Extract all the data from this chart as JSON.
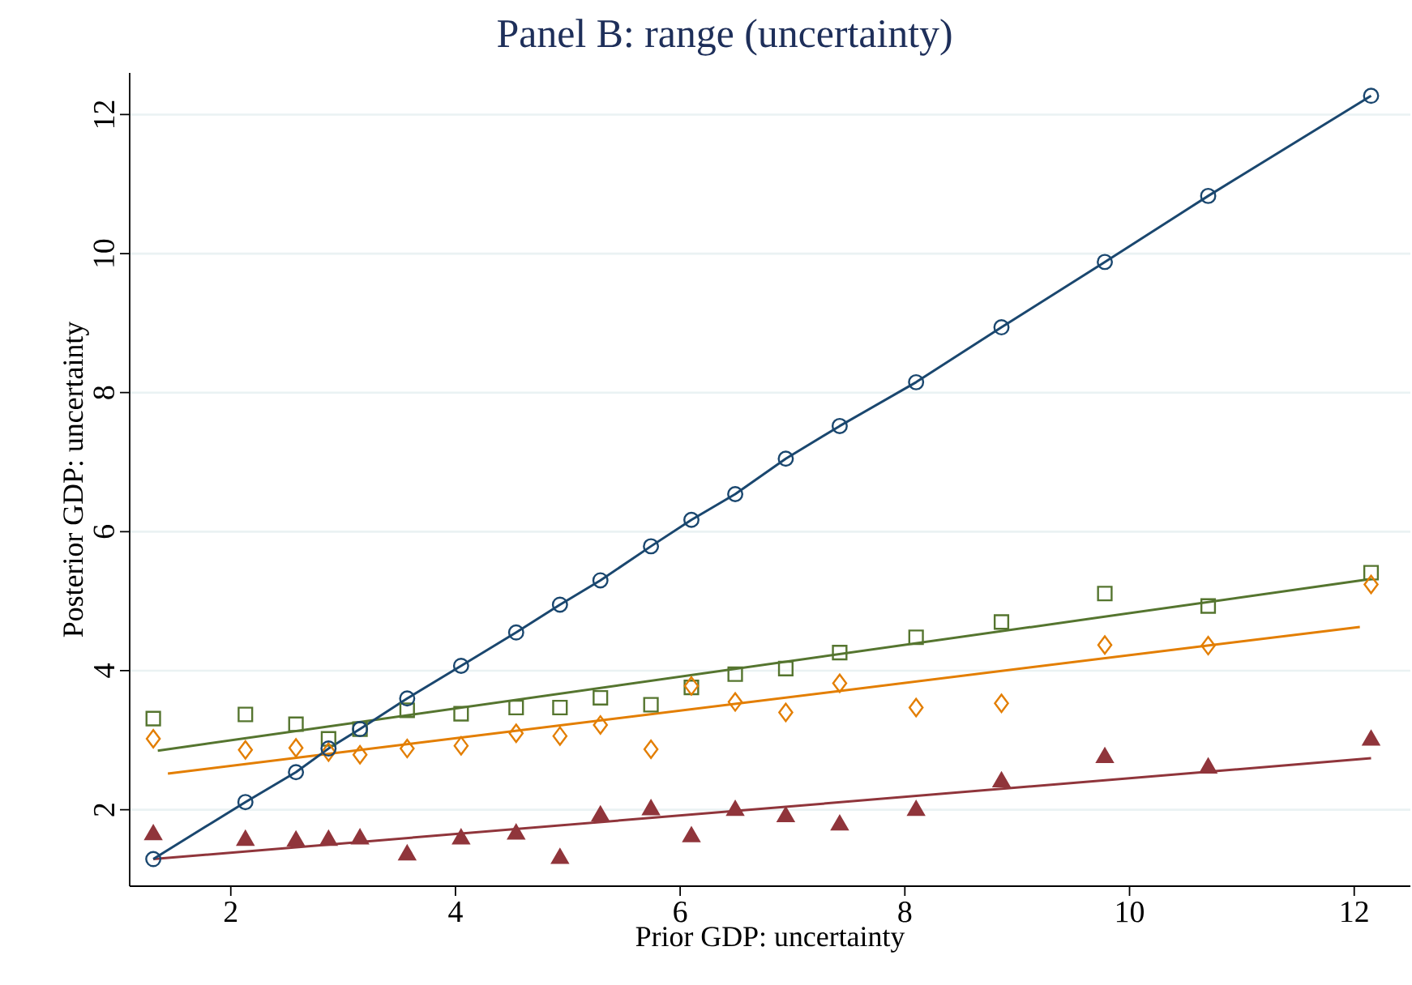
{
  "chart_data": {
    "type": "scatter",
    "title": "Panel B: range (uncertainty)",
    "xlabel": "Prior GDP: uncertainty",
    "ylabel": "Posterior GDP: uncertainty",
    "xlim": [
      1.1,
      12.5
    ],
    "ylim": [
      0.9,
      12.6
    ],
    "xticks": [
      2,
      4,
      6,
      8,
      10,
      12
    ],
    "yticks": [
      2,
      4,
      6,
      8,
      10,
      12
    ],
    "grid": "y",
    "x": [
      1.31,
      2.13,
      2.58,
      2.87,
      3.15,
      3.57,
      4.05,
      4.54,
      4.93,
      5.29,
      5.74,
      6.1,
      6.49,
      6.94,
      7.42,
      8.1,
      8.86,
      9.78,
      10.7,
      12.15
    ],
    "series": [
      {
        "type": "scatter",
        "color": "#55752f",
        "marker": "square",
        "values": [
          3.31,
          3.37,
          3.23,
          3.02,
          3.16,
          3.43,
          3.38,
          3.47,
          3.47,
          3.61,
          3.51,
          3.76,
          3.95,
          4.03,
          4.26,
          4.48,
          4.7,
          5.11,
          4.93,
          5.41
        ]
      },
      {
        "type": "scatter",
        "color": "#e37e00",
        "marker": "diamond",
        "values": [
          3.02,
          2.86,
          2.89,
          2.83,
          2.79,
          2.88,
          2.92,
          3.1,
          3.06,
          3.22,
          2.87,
          3.78,
          3.55,
          3.4,
          3.82,
          3.47,
          3.53,
          4.37,
          4.36,
          5.24
        ]
      },
      {
        "type": "scatter",
        "color": "#90353b",
        "marker": "triangle",
        "values": [
          1.64,
          1.56,
          1.55,
          1.56,
          1.58,
          1.35,
          1.58,
          1.65,
          1.3,
          1.91,
          2.0,
          1.61,
          1.99,
          1.9,
          1.78,
          1.99,
          2.4,
          2.75,
          2.6,
          3.0
        ]
      },
      {
        "type": "line",
        "color": "#55752f",
        "marker": "none",
        "x": [
          1.35,
          12.15
        ],
        "values": [
          2.85,
          5.32
        ]
      },
      {
        "type": "line",
        "color": "#e37e00",
        "marker": "none",
        "x": [
          1.44,
          12.05
        ],
        "values": [
          2.52,
          4.63
        ]
      },
      {
        "type": "line",
        "color": "#90353b",
        "marker": "none",
        "x": [
          1.31,
          12.15
        ],
        "values": [
          1.29,
          2.74
        ]
      },
      {
        "type": "line",
        "color": "#1a476f",
        "marker": "circle",
        "values": [
          1.29,
          2.11,
          2.54,
          2.88,
          3.16,
          3.6,
          4.07,
          4.55,
          4.95,
          5.3,
          5.79,
          6.17,
          6.54,
          7.05,
          7.52,
          8.15,
          8.94,
          9.88,
          10.83,
          12.27
        ]
      }
    ]
  }
}
